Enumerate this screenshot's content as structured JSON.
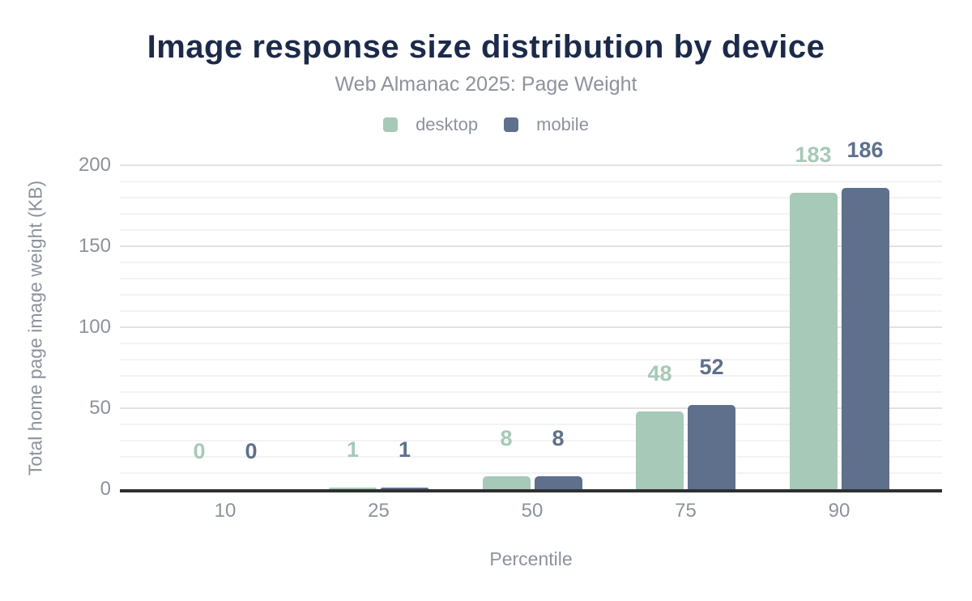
{
  "chart_data": {
    "type": "bar",
    "title": "Image response size distribution by device",
    "subtitle": "Web Almanac 2025: Page Weight",
    "xlabel": "Percentile",
    "ylabel": "Total home page image weight (KB)",
    "categories": [
      "10",
      "25",
      "50",
      "75",
      "90"
    ],
    "series": [
      {
        "name": "desktop",
        "color": "#a7c9b7",
        "values": [
          0,
          1,
          8,
          48,
          183
        ]
      },
      {
        "name": "mobile",
        "color": "#5e708c",
        "values": [
          0,
          1,
          8,
          52,
          186
        ]
      }
    ],
    "ylim": [
      0,
      200
    ],
    "yticks": [
      0,
      50,
      100,
      150,
      200
    ],
    "minor_grid_step": 10,
    "grid": true,
    "legend_position": "top",
    "value_labels_shown": true,
    "colors": {
      "title": "#1c2a4a",
      "text_muted": "#8d929c",
      "grid_major": "#e2e2e2",
      "grid_minor": "#f3f3f3",
      "axis_line": "#2f2f2f"
    }
  }
}
